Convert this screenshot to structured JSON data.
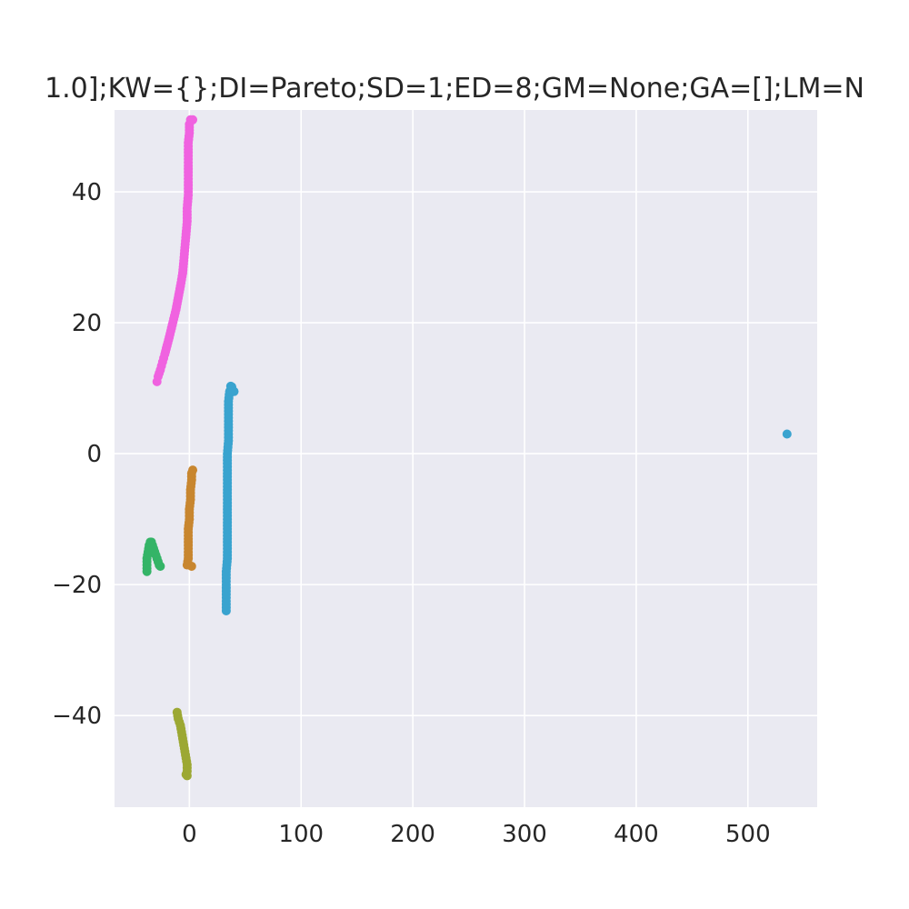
{
  "chart_data": {
    "type": "scatter",
    "title": "1.0];KW={};DI=Pareto;SD=1;ED=8;GM=None;GA=[];LM=N",
    "xlabel": "",
    "ylabel": "",
    "xlim": [
      -67,
      562
    ],
    "ylim": [
      -54,
      52.5
    ],
    "grid": true,
    "legend": "none",
    "background": "#eaeaf2",
    "xticks": [
      {
        "value": 0,
        "label": "0"
      },
      {
        "value": 100,
        "label": "100"
      },
      {
        "value": 200,
        "label": "200"
      },
      {
        "value": 300,
        "label": "300"
      },
      {
        "value": 400,
        "label": "400"
      },
      {
        "value": 500,
        "label": "500"
      }
    ],
    "yticks": [
      {
        "value": -40,
        "label": "−40"
      },
      {
        "value": -20,
        "label": "−20"
      },
      {
        "value": 0,
        "label": "0"
      },
      {
        "value": 20,
        "label": "20"
      },
      {
        "value": 40,
        "label": "40"
      }
    ],
    "series": [
      {
        "color": "#f062e0",
        "points": [
          [
            -29,
            11
          ],
          [
            -28,
            11.8
          ],
          [
            -26,
            12.8
          ],
          [
            -24,
            14
          ],
          [
            -22,
            15.2
          ],
          [
            -20,
            16.5
          ],
          [
            -18,
            17.8
          ],
          [
            -16,
            19.2
          ],
          [
            -14,
            20.6
          ],
          [
            -12,
            22
          ],
          [
            -10,
            23.8
          ],
          [
            -8,
            25.6
          ],
          [
            -6,
            27.6
          ],
          [
            -5,
            29.5
          ],
          [
            -4,
            31.5
          ],
          [
            -3,
            33.5
          ],
          [
            -2,
            35.5
          ],
          [
            -2,
            37.5
          ],
          [
            -1,
            39.5
          ],
          [
            -1,
            41.5
          ],
          [
            -1,
            43.5
          ],
          [
            -1,
            45.5
          ],
          [
            -1,
            47.5
          ],
          [
            0,
            49
          ],
          [
            0,
            50.3
          ],
          [
            1,
            51
          ],
          [
            3,
            51
          ]
        ]
      },
      {
        "color": "#39a3cf",
        "points": [
          [
            33,
            -24
          ],
          [
            33,
            -22
          ],
          [
            33,
            -20
          ],
          [
            33,
            -18
          ],
          [
            34,
            -16
          ],
          [
            34,
            -14
          ],
          [
            34,
            -12
          ],
          [
            34,
            -10
          ],
          [
            34,
            -8
          ],
          [
            34,
            -6
          ],
          [
            34,
            -4
          ],
          [
            34,
            -2
          ],
          [
            34,
            0
          ],
          [
            35,
            2
          ],
          [
            35,
            4
          ],
          [
            35,
            6
          ],
          [
            35,
            8
          ],
          [
            36,
            9.5
          ],
          [
            37,
            10.3
          ],
          [
            38,
            10.2
          ],
          [
            40,
            9.5
          ],
          [
            535,
            3
          ]
        ]
      },
      {
        "color": "#c8862f",
        "points": [
          [
            -2,
            -17
          ],
          [
            -1,
            -16
          ],
          [
            -1,
            -14.5
          ],
          [
            -1,
            -13
          ],
          [
            -1,
            -11.5
          ],
          [
            0,
            -10
          ],
          [
            0,
            -8.5
          ],
          [
            1,
            -7
          ],
          [
            1,
            -5.5
          ],
          [
            2,
            -4
          ],
          [
            2,
            -3
          ],
          [
            3,
            -2.5
          ],
          [
            2,
            -17.2
          ]
        ]
      },
      {
        "color": "#34b467",
        "points": [
          [
            -38,
            -18
          ],
          [
            -38,
            -17
          ],
          [
            -38,
            -16
          ],
          [
            -37,
            -15
          ],
          [
            -36,
            -14
          ],
          [
            -35,
            -13.5
          ],
          [
            -34,
            -13.5
          ],
          [
            -33,
            -14
          ],
          [
            -32,
            -14.5
          ],
          [
            -31,
            -15
          ],
          [
            -30,
            -15.5
          ],
          [
            -29,
            -16
          ],
          [
            -28,
            -16.5
          ],
          [
            -27,
            -17
          ],
          [
            -26,
            -17.2
          ]
        ]
      },
      {
        "color": "#9ca833",
        "points": [
          [
            -11,
            -39.5
          ],
          [
            -10,
            -40.5
          ],
          [
            -8,
            -41.5
          ],
          [
            -7,
            -42.5
          ],
          [
            -6,
            -43.5
          ],
          [
            -5,
            -44.5
          ],
          [
            -4,
            -45.5
          ],
          [
            -3,
            -46.5
          ],
          [
            -2,
            -47.5
          ],
          [
            -2,
            -48.5
          ],
          [
            -3,
            -49
          ],
          [
            -2,
            -49.2
          ]
        ]
      }
    ]
  }
}
